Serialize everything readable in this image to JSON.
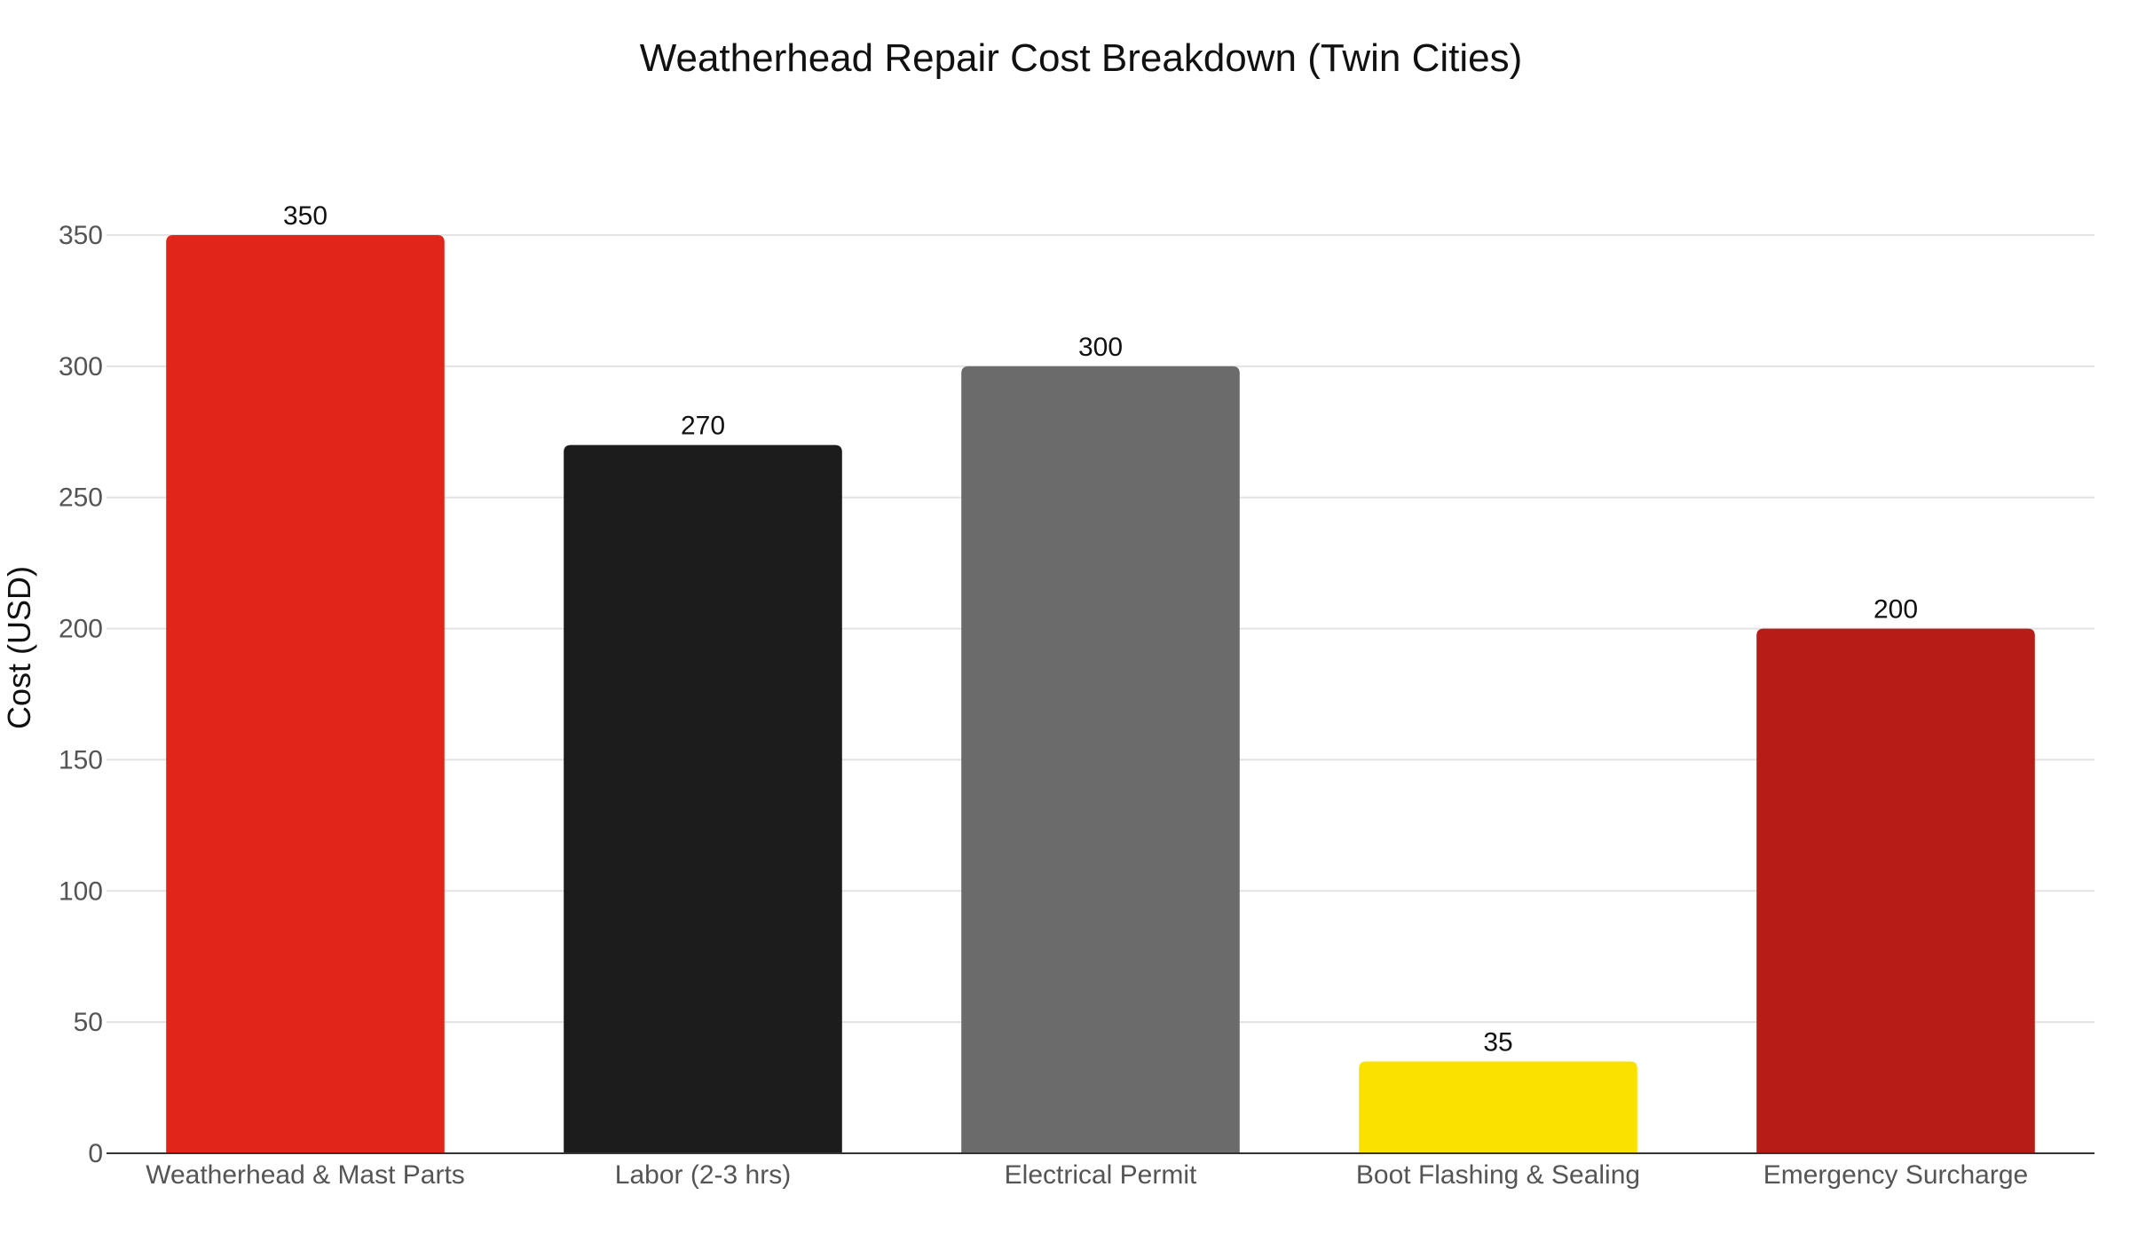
{
  "chart_data": {
    "type": "bar",
    "title": "Weatherhead Repair Cost Breakdown (Twin Cities)",
    "xlabel": "",
    "ylabel": "Cost (USD)",
    "ylim": [
      0,
      350
    ],
    "yticks": [
      0,
      50,
      100,
      150,
      200,
      250,
      300,
      350
    ],
    "grid": true,
    "categories": [
      "Weatherhead & Mast Parts",
      "Labor (2-3 hrs)",
      "Electrical Permit",
      "Boot Flashing & Sealing",
      "Emergency Surcharge"
    ],
    "values": [
      350,
      270,
      300,
      35,
      200
    ],
    "data_labels": [
      "350",
      "270",
      "300",
      "35",
      "200"
    ],
    "colors": [
      "#e1251b",
      "#1c1c1c",
      "#6b6b6b",
      "#fbe100",
      "#b71c16"
    ]
  }
}
